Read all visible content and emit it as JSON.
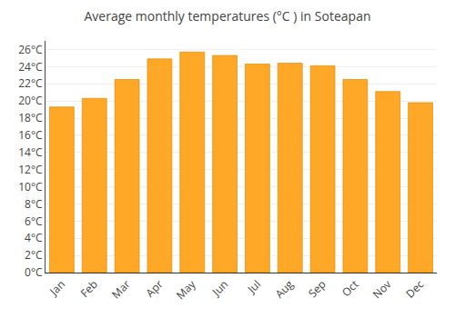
{
  "chart_data": {
    "type": "bar",
    "title": "Average monthly temperatures (°C ) in Soteapan",
    "categories": [
      "Jan",
      "Feb",
      "Mar",
      "Apr",
      "May",
      "Jun",
      "Jul",
      "Aug",
      "Sep",
      "Oct",
      "Nov",
      "Dec"
    ],
    "values": [
      19.3,
      20.3,
      22.5,
      24.9,
      25.7,
      25.3,
      24.3,
      24.4,
      24.1,
      22.5,
      21.1,
      19.8
    ],
    "color": "#FFA726",
    "ylim": [
      0,
      27
    ],
    "yticks": [
      {
        "value": 0,
        "label": "0°C"
      },
      {
        "value": 2,
        "label": "2°C"
      },
      {
        "value": 4,
        "label": "4°C"
      },
      {
        "value": 6,
        "label": "6°C"
      },
      {
        "value": 8,
        "label": "8°C"
      },
      {
        "value": 10,
        "label": "10°C"
      },
      {
        "value": 12,
        "label": "12°C"
      },
      {
        "value": 14,
        "label": "14°C"
      },
      {
        "value": 16,
        "label": "16°C"
      },
      {
        "value": 18,
        "label": "18°C"
      },
      {
        "value": 20,
        "label": "20°C"
      },
      {
        "value": 22,
        "label": "22°C"
      },
      {
        "value": 24,
        "label": "24°C"
      },
      {
        "value": 26,
        "label": "26°C"
      }
    ],
    "grid": true
  }
}
